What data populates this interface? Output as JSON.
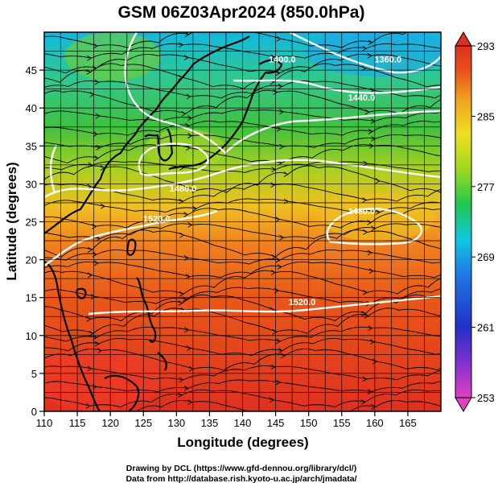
{
  "title": "GSM 06Z03Apr2024 (850.0hPa)",
  "map": {
    "xlabel": "Longitude (degrees)",
    "ylabel": "Latitude  (degrees)",
    "lon_range": [
      110,
      170
    ],
    "lat_range": [
      0,
      50
    ],
    "lon_ticks": [
      110,
      115,
      120,
      125,
      130,
      135,
      140,
      145,
      150,
      155,
      160,
      165
    ],
    "lat_ticks": [
      0,
      5,
      10,
      15,
      20,
      25,
      30,
      35,
      40,
      45
    ],
    "colorbar": {
      "min": 253,
      "max": 293,
      "ticks": [
        293,
        285,
        277,
        269,
        261,
        253
      ],
      "colors": [
        "#e040c0",
        "#2030c8",
        "#1e78e6",
        "#10c8e0",
        "#20c850",
        "#a0d820",
        "#f0e020",
        "#f0a020",
        "#e85018",
        "#e03020"
      ]
    },
    "contours": [
      {
        "label": "1360.0",
        "lon": 162,
        "lat": 46
      },
      {
        "label": "1400.0",
        "lon": 146,
        "lat": 46
      },
      {
        "label": "1440.0",
        "lon": 158,
        "lat": 41
      },
      {
        "label": "1480.0",
        "lon": 131,
        "lat": 29
      },
      {
        "label": "1520.0",
        "lon": 127,
        "lat": 25
      },
      {
        "label": "1520.0",
        "lon": 149,
        "lat": 14
      },
      {
        "label": "1480.0",
        "lon": 158,
        "lat": 26
      }
    ],
    "land_color": "#000000",
    "contour_color": "#ffffff"
  },
  "credits": [
    "Drawing by DCL (https://www.gfd-dennou.org/library/dcl/)",
    "Data from http://database.rish.kyoto-u.ac.jp/arch/jmadata/"
  ]
}
